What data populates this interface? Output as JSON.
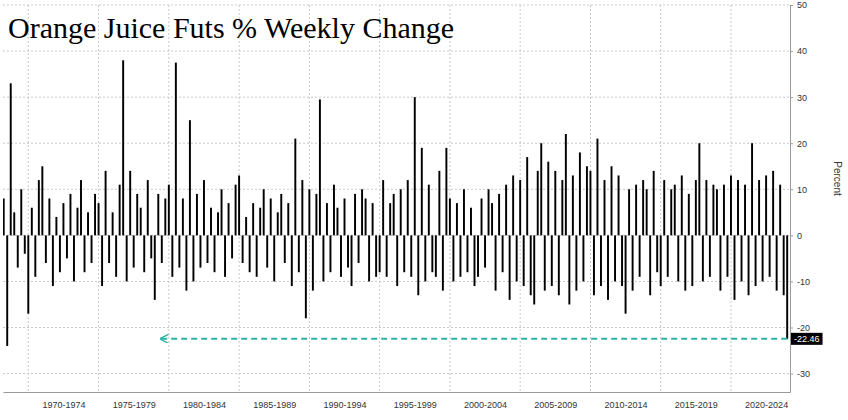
{
  "chart_data": {
    "type": "bar",
    "title": "Orange Juice Futs % Weekly Change",
    "y_label": "Percent",
    "color": "#000000",
    "grid": true,
    "xlim": [
      1968.2,
      2024.2
    ],
    "xticks": [
      {
        "value": 1972.5,
        "label": "1970-1974"
      },
      {
        "value": 1977.5,
        "label": "1975-1979"
      },
      {
        "value": 1982.5,
        "label": "1980-1984"
      },
      {
        "value": 1987.5,
        "label": "1985-1989"
      },
      {
        "value": 1992.5,
        "label": "1990-1994"
      },
      {
        "value": 1997.5,
        "label": "1995-1999"
      },
      {
        "value": 2002.5,
        "label": "2000-2004"
      },
      {
        "value": 2007.5,
        "label": "2005-2009"
      },
      {
        "value": 2012.5,
        "label": "2010-2014"
      },
      {
        "value": 2017.5,
        "label": "2015-2019"
      },
      {
        "value": 2022.5,
        "label": "2020-2024"
      }
    ],
    "ylim": [
      -34,
      50
    ],
    "yticks": [
      -30,
      -20,
      -10,
      0,
      10,
      20,
      30,
      40,
      50
    ],
    "annotations": [
      {
        "text": "-22.46",
        "x": 2024,
        "y": -22.46,
        "arrow_to_x": 1979.4,
        "color": "#2ab3a6"
      }
    ],
    "x": [
      1968.25,
      1968.5,
      1968.75,
      1969,
      1969.25,
      1969.5,
      1969.75,
      1970,
      1970.25,
      1970.5,
      1970.75,
      1971,
      1971.25,
      1971.5,
      1971.75,
      1972,
      1972.25,
      1972.5,
      1972.75,
      1973,
      1973.25,
      1973.5,
      1973.75,
      1974,
      1974.25,
      1974.5,
      1974.75,
      1975,
      1975.25,
      1975.5,
      1975.75,
      1976,
      1976.25,
      1976.5,
      1976.75,
      1977,
      1977.25,
      1977.5,
      1977.75,
      1978,
      1978.25,
      1978.5,
      1978.75,
      1979,
      1979.25,
      1979.5,
      1979.75,
      1980,
      1980.25,
      1980.5,
      1980.75,
      1981,
      1981.25,
      1981.5,
      1981.75,
      1982,
      1982.25,
      1982.5,
      1982.75,
      1983,
      1983.25,
      1983.5,
      1983.75,
      1984,
      1984.25,
      1984.5,
      1984.75,
      1985,
      1985.25,
      1985.5,
      1985.75,
      1986,
      1986.25,
      1986.5,
      1986.75,
      1987,
      1987.25,
      1987.5,
      1987.75,
      1988,
      1988.25,
      1988.5,
      1988.75,
      1989,
      1989.25,
      1989.5,
      1989.75,
      1990,
      1990.25,
      1990.5,
      1990.75,
      1991,
      1991.25,
      1991.5,
      1991.75,
      1992,
      1992.25,
      1992.5,
      1992.75,
      1993,
      1993.25,
      1993.5,
      1993.75,
      1994,
      1994.25,
      1994.5,
      1994.75,
      1995,
      1995.25,
      1995.5,
      1995.75,
      1996,
      1996.25,
      1996.5,
      1996.75,
      1997,
      1997.25,
      1997.5,
      1997.75,
      1998,
      1998.25,
      1998.5,
      1998.75,
      1999,
      1999.25,
      1999.5,
      1999.75,
      2000,
      2000.25,
      2000.5,
      2000.75,
      2001,
      2001.25,
      2001.5,
      2001.75,
      2002,
      2002.25,
      2002.5,
      2002.75,
      2003,
      2003.25,
      2003.5,
      2003.75,
      2004,
      2004.25,
      2004.5,
      2004.75,
      2005,
      2005.25,
      2005.5,
      2005.75,
      2006,
      2006.25,
      2006.5,
      2006.75,
      2007,
      2007.25,
      2007.5,
      2007.75,
      2008,
      2008.25,
      2008.5,
      2008.75,
      2009,
      2009.25,
      2009.5,
      2009.75,
      2010,
      2010.25,
      2010.5,
      2010.75,
      2011,
      2011.25,
      2011.5,
      2011.75,
      2012,
      2012.25,
      2012.5,
      2012.75,
      2013,
      2013.25,
      2013.5,
      2013.75,
      2014,
      2014.25,
      2014.5,
      2014.75,
      2015,
      2015.25,
      2015.5,
      2015.75,
      2016,
      2016.25,
      2016.5,
      2016.75,
      2017,
      2017.25,
      2017.5,
      2017.75,
      2018,
      2018.25,
      2018.5,
      2018.75,
      2019,
      2019.25,
      2019.5,
      2019.75,
      2020,
      2020.25,
      2020.5,
      2020.75,
      2021,
      2021.25,
      2021.5,
      2021.75,
      2022,
      2022.25,
      2022.5,
      2022.75,
      2023,
      2023.25,
      2023.5,
      2023.75,
      2024
    ],
    "values": [
      8,
      -24,
      33,
      5,
      -7,
      10,
      -4,
      -17,
      6,
      -9,
      12,
      15,
      -6,
      8,
      -11,
      4,
      -8,
      7,
      -5,
      9,
      -10,
      6,
      12,
      -8,
      5,
      -6,
      9,
      7,
      -11,
      14,
      -6,
      5,
      -9,
      11,
      38,
      -10,
      14,
      -7,
      9,
      6,
      -8,
      12,
      -5,
      -14,
      9,
      -6,
      8,
      11,
      -9,
      37.5,
      -7,
      8,
      -12,
      25,
      -10,
      9,
      -7,
      12,
      -6,
      6,
      -8,
      5,
      10,
      -9,
      7,
      -5,
      11,
      13,
      -6,
      4,
      -8,
      7,
      -9,
      6,
      10,
      -7,
      8,
      -10,
      5,
      9,
      -6,
      7,
      -11,
      21,
      -8,
      12,
      -18,
      10,
      -12,
      9,
      29.5,
      -10,
      7,
      -8,
      11,
      6,
      -9,
      8,
      -7,
      -11,
      9,
      -6,
      10,
      8,
      -10,
      7,
      -9,
      -8,
      12,
      -9,
      7,
      9,
      -11,
      10,
      -8,
      12,
      -9,
      30,
      -13,
      19,
      -10,
      11,
      -8,
      -9,
      14,
      -12,
      19,
      8,
      -10,
      7,
      -9,
      10,
      -8,
      6,
      -11,
      -9,
      8,
      -7,
      10,
      7,
      -12,
      9,
      -8,
      11,
      -14,
      13,
      -10,
      12,
      -11,
      17,
      -13,
      -15,
      14,
      20,
      -12,
      16,
      -11,
      14,
      -13,
      12,
      22,
      -15,
      13,
      -12,
      18,
      -10,
      15,
      14,
      -13,
      21,
      -11,
      12,
      -14,
      15,
      -10,
      13,
      -11,
      -17,
      10,
      -12,
      11,
      -9,
      12,
      10,
      -13,
      14,
      -8,
      -11,
      12,
      -9,
      10,
      11,
      -10,
      13,
      -12,
      9,
      -11,
      12,
      20,
      -10,
      12,
      -9,
      11,
      10,
      -12,
      11,
      -9,
      13,
      -14,
      12,
      -10,
      11,
      -13,
      20,
      -11,
      12,
      -10,
      13,
      -9,
      14,
      -12,
      11,
      -13,
      -22.46
    ]
  }
}
